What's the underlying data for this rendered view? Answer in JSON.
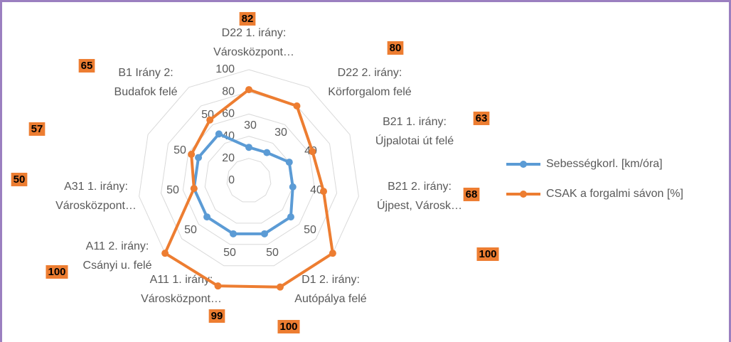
{
  "chart_data": {
    "type": "radar",
    "categories": [
      [
        "D22 1. irány:",
        "Városközpont…"
      ],
      [
        "D22 2. irány:",
        "Körforgalom felé"
      ],
      [
        "B21 1. irány:",
        "Újpalotai út felé"
      ],
      [
        "B21 2. irány:",
        "Újpest, Városk…"
      ],
      null,
      [
        "D1 2. irány:",
        "Autópálya felé"
      ],
      [
        "A11 1. irány:",
        "Városközpont…"
      ],
      [
        "A11  2. irány:",
        "Csányi u. felé"
      ],
      [
        "A31 1. irány:",
        "Városközpont…"
      ],
      null,
      [
        "B1 Irány 2:",
        "Budafok felé"
      ]
    ],
    "series": [
      {
        "name": "Sebességkorl. [km/óra]",
        "color": "#5b9bd5",
        "values": [
          30,
          30,
          40,
          40,
          50,
          50,
          50,
          50,
          50,
          50,
          50
        ]
      },
      {
        "name": "CSAK a forgalmi sávon [%]",
        "color": "#ed7d31",
        "values": [
          82,
          80,
          63,
          68,
          100,
          100,
          99,
          100,
          50,
          57,
          65
        ]
      }
    ],
    "ylim": [
      0,
      100
    ],
    "yticks": [
      0,
      20,
      40,
      60,
      80,
      100
    ],
    "grid": true,
    "legend": "right"
  }
}
